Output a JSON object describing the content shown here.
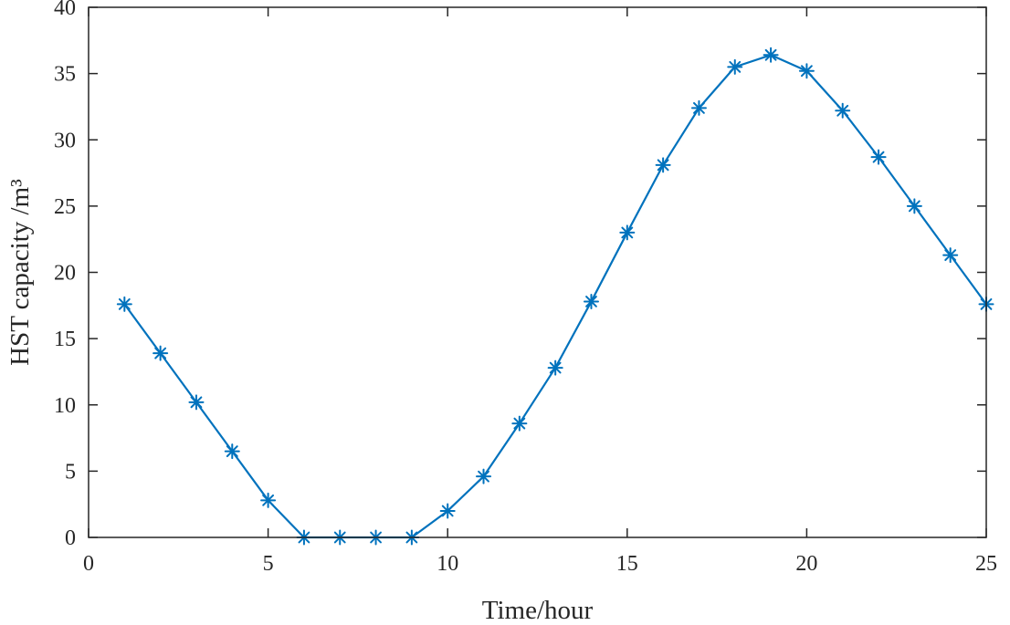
{
  "chart_data": {
    "type": "line",
    "title": "",
    "xlabel": "Time/hour",
    "ylabel": "HST capacity /m³",
    "xlim": [
      0,
      25
    ],
    "ylim": [
      0,
      40
    ],
    "xticks": [
      0,
      5,
      10,
      15,
      20,
      25
    ],
    "yticks": [
      0,
      5,
      10,
      15,
      20,
      25,
      30,
      35,
      40
    ],
    "grid": false,
    "series": [
      {
        "color": "#0072BD",
        "marker": "asterisk",
        "x": [
          1,
          2,
          3,
          4,
          5,
          6,
          7,
          8,
          9,
          10,
          11,
          12,
          13,
          14,
          15,
          16,
          17,
          18,
          19,
          20,
          21,
          22,
          23,
          24,
          25
        ],
        "y": [
          17.6,
          13.9,
          10.2,
          6.5,
          2.8,
          0,
          0,
          0,
          0,
          2.0,
          4.6,
          8.6,
          12.8,
          17.8,
          23.0,
          28.1,
          32.4,
          35.5,
          36.4,
          35.2,
          32.2,
          28.7,
          25.0,
          21.3,
          17.6
        ]
      }
    ]
  }
}
